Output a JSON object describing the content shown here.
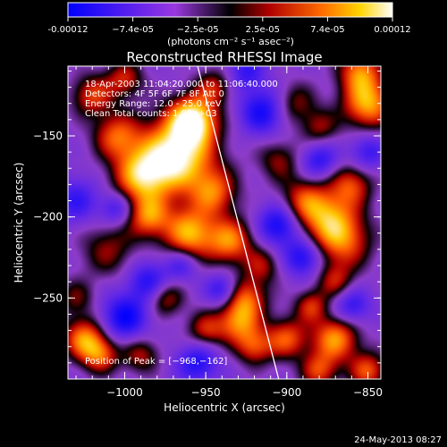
{
  "colorbar": {
    "ticks": [
      "-0.00012",
      "−7.4e-05",
      "−2.5e-05",
      "2.5e-05",
      "7.4e-05",
      "0.00012"
    ],
    "units": "(photons cm⁻² s⁻¹ asec⁻²)"
  },
  "chart_data": {
    "type": "heatmap",
    "title": "Reconstructed RHESSI Image",
    "xlabel": "Heliocentric X (arcsec)",
    "ylabel": "Heliocentric Y (arcsec)",
    "xlim": [
      -1035,
      -842
    ],
    "ylim": [
      -300,
      -107
    ],
    "xticks": [
      -1000,
      -950,
      -900,
      -850
    ],
    "xtick_labels": [
      "−1000",
      "−950",
      "−900",
      "−850"
    ],
    "yticks": [
      -150,
      -200,
      -250
    ],
    "ytick_labels": [
      "−150",
      "−200",
      "−250"
    ],
    "annotations": [
      "18-Apr-2003 11:04:20.000 to 11:06:40.000",
      "Detectors: 4F 5F 6F 7F 8F  Att 0",
      "Energy Range: 12.0 - 25.0 keV",
      "Clean     Total counts: 1.00e+03"
    ],
    "peak_label": "Position of Peak = [−968,−162]",
    "peak": [
      -968,
      -162
    ],
    "limb_line": [
      [
        -955,
        -107
      ],
      [
        -905,
        -300
      ]
    ],
    "blobs": [
      [
        -968,
        -162,
        16,
        1.0
      ],
      [
        -958,
        -140,
        10,
        0.9
      ],
      [
        -990,
        -175,
        12,
        0.7
      ],
      [
        -1005,
        -150,
        10,
        0.55
      ],
      [
        -985,
        -200,
        9,
        0.6
      ],
      [
        -960,
        -210,
        11,
        0.75
      ],
      [
        -945,
        -185,
        10,
        0.55
      ],
      [
        -935,
        -215,
        10,
        0.65
      ],
      [
        -1010,
        -220,
        12,
        0.35
      ],
      [
        -1025,
        -275,
        9,
        0.65
      ],
      [
        -1015,
        -285,
        8,
        0.55
      ],
      [
        -1030,
        -250,
        8,
        0.3
      ],
      [
        -925,
        -250,
        9,
        0.55
      ],
      [
        -930,
        -265,
        9,
        0.6
      ],
      [
        -920,
        -280,
        8,
        0.5
      ],
      [
        -900,
        -275,
        9,
        0.55
      ],
      [
        -870,
        -275,
        10,
        0.7
      ],
      [
        -885,
        -255,
        7,
        0.45
      ],
      [
        -875,
        -200,
        12,
        0.6
      ],
      [
        -865,
        -215,
        12,
        0.55
      ],
      [
        -890,
        -190,
        10,
        0.45
      ],
      [
        -860,
        -180,
        9,
        0.5
      ],
      [
        -850,
        -130,
        11,
        0.75
      ],
      [
        -855,
        -110,
        9,
        0.6
      ],
      [
        -880,
        -145,
        8,
        0.35
      ],
      [
        -870,
        -240,
        8,
        0.4
      ],
      [
        -895,
        -130,
        9,
        0.35
      ],
      [
        -1020,
        -125,
        9,
        0.5
      ],
      [
        -1000,
        -115,
        8,
        0.45
      ],
      [
        -945,
        -120,
        8,
        0.4
      ],
      [
        -905,
        -165,
        9,
        0.35
      ],
      [
        -915,
        -230,
        8,
        0.35
      ],
      [
        -975,
        -250,
        8,
        0.45
      ],
      [
        -950,
        -270,
        8,
        0.45
      ],
      [
        -990,
        -285,
        8,
        0.4
      ],
      [
        -880,
        -295,
        8,
        0.5
      ],
      [
        -850,
        -295,
        8,
        0.55
      ],
      [
        -1000,
        -262,
        10,
        -0.6
      ],
      [
        -985,
        -240,
        9,
        -0.5
      ],
      [
        -915,
        -135,
        10,
        -0.55
      ],
      [
        -905,
        -205,
        9,
        -0.6
      ],
      [
        -890,
        -225,
        8,
        -0.55
      ],
      [
        -955,
        -290,
        9,
        -0.5
      ],
      [
        -880,
        -165,
        8,
        -0.45
      ],
      [
        -1030,
        -190,
        10,
        -0.4
      ],
      [
        -860,
        -255,
        8,
        -0.45
      ],
      [
        -925,
        -110,
        8,
        -0.4
      ],
      [
        -1005,
        -195,
        7,
        -0.4
      ],
      [
        -940,
        -245,
        7,
        -0.45
      ],
      [
        -850,
        -160,
        8,
        -0.4
      ],
      [
        -965,
        -230,
        7,
        -0.35
      ]
    ]
  },
  "footer": {
    "date": "24-May-2013 08:27"
  }
}
